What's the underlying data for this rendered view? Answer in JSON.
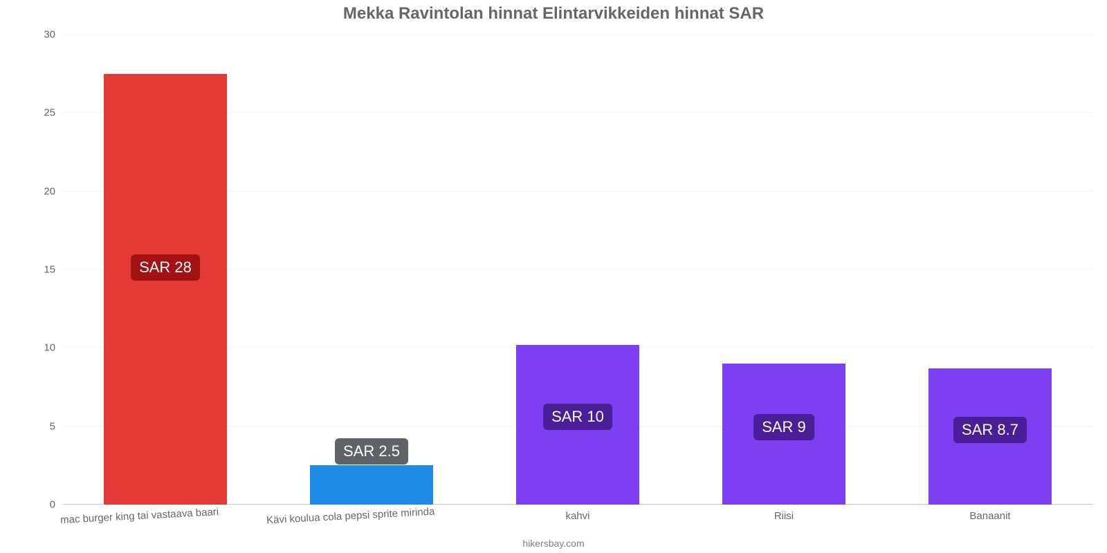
{
  "chart": {
    "type": "bar",
    "title": "Mekka Ravintolan hinnat Elintarvikkeiden hinnat SAR",
    "title_color": "#666666",
    "title_fontsize": 24,
    "background_color": "#ffffff",
    "grid_color": "#f2f2f2",
    "baseline_color": "#cccccc",
    "axis_label_color": "#666666",
    "y": {
      "min": 0,
      "max": 30,
      "ticks": [
        0,
        5,
        10,
        15,
        20,
        25,
        30
      ],
      "step": 5
    },
    "bar_width_ratio": 0.62,
    "bars": [
      {
        "category": "mac burger king tai vastaava baari",
        "value": 27.5,
        "label": "SAR 28",
        "bar_color": "#e53935",
        "label_bg": "#a31212",
        "rotate_xtick": true
      },
      {
        "category": "Kävi koulua cola pepsi sprite mirinda",
        "value": 2.5,
        "label": "SAR 2.5",
        "bar_color": "#1e88e5",
        "label_bg": "#5f6368",
        "rotate_xtick": true
      },
      {
        "category": "kahvi",
        "value": 10.2,
        "label": "SAR 10",
        "bar_color": "#7e3ff2",
        "label_bg": "#4b1e99",
        "rotate_xtick": false
      },
      {
        "category": "Riisi",
        "value": 9.0,
        "label": "SAR 9",
        "bar_color": "#7e3ff2",
        "label_bg": "#4b1e99",
        "rotate_xtick": false
      },
      {
        "category": "Banaanit",
        "value": 8.7,
        "label": "SAR 8.7",
        "bar_color": "#7e3ff2",
        "label_bg": "#4b1e99",
        "rotate_xtick": false
      }
    ],
    "credit": "hikersbay.com"
  }
}
